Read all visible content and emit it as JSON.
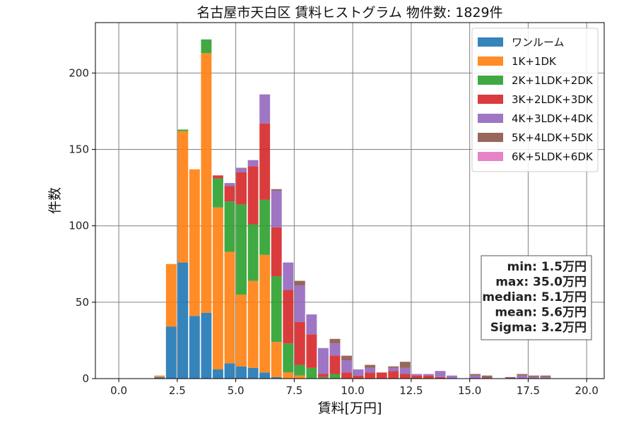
{
  "chart_data": {
    "type": "bar",
    "stacked": true,
    "title": "名古屋市天白区 賃料ヒストグラム  物件数: 1829件",
    "xlabel": "賃料[万円]",
    "ylabel": "件数",
    "xlim": [
      -1.0,
      20.75
    ],
    "ylim": [
      0,
      233
    ],
    "xticks": [
      "0.0",
      "2.5",
      "5.0",
      "7.5",
      "10.0",
      "12.5",
      "15.0",
      "17.5",
      "20.0"
    ],
    "yticks": [
      "0",
      "50",
      "100",
      "150",
      "200"
    ],
    "grid": true,
    "legend_position": "top-right",
    "bin_width": 0.5,
    "bins": [
      1.5,
      2.0,
      2.5,
      3.0,
      3.5,
      4.0,
      4.5,
      5.0,
      5.5,
      6.0,
      6.5,
      7.0,
      7.5,
      8.0,
      8.5,
      9.0,
      9.5,
      10.0,
      10.5,
      11.0,
      11.5,
      12.0,
      12.5,
      13.0,
      13.5,
      14.0,
      14.5,
      15.0,
      15.5,
      16.0,
      16.5,
      17.0,
      17.5,
      18.0
    ],
    "series": [
      {
        "name": "ワンルーム",
        "color": "#1f77b4",
        "values": [
          1,
          34,
          76,
          41,
          43,
          6,
          10,
          8,
          7,
          4,
          1,
          0,
          0,
          0,
          0,
          0,
          0,
          0,
          0,
          0,
          0,
          0,
          0,
          0,
          0,
          0,
          0,
          0,
          0,
          0,
          0,
          0,
          0,
          0
        ]
      },
      {
        "name": "1K+1DK",
        "color": "#ff7f0e",
        "values": [
          1,
          41,
          86,
          96,
          170,
          106,
          73,
          47,
          57,
          77,
          23,
          4,
          2,
          0,
          0,
          0,
          0,
          0,
          0,
          0,
          0,
          0,
          0,
          0,
          0,
          0,
          0,
          0,
          0,
          0,
          0,
          0,
          0,
          0
        ]
      },
      {
        "name": "2K+1LDK+2DK",
        "color": "#2ca02c",
        "values": [
          0,
          0,
          1,
          0,
          9,
          19,
          33,
          59,
          37,
          36,
          43,
          19,
          7,
          7,
          1,
          3,
          0,
          0,
          0,
          0,
          0,
          0,
          0,
          0,
          0,
          0,
          0,
          0,
          0,
          0,
          0,
          0,
          0,
          0
        ]
      },
      {
        "name": "3K+2LDK+3DK",
        "color": "#d62728",
        "values": [
          0,
          0,
          0,
          0,
          0,
          2,
          10,
          21,
          38,
          50,
          32,
          35,
          28,
          22,
          2,
          12,
          4,
          2,
          4,
          4,
          5,
          3,
          2,
          2,
          1,
          0,
          0,
          0,
          0,
          0,
          0,
          0,
          0,
          0
        ]
      },
      {
        "name": "4K+3LDK+4DK",
        "color": "#9467bd",
        "values": [
          0,
          0,
          0,
          0,
          0,
          0,
          2,
          3,
          4,
          19,
          24,
          18,
          24,
          13,
          17,
          8,
          8,
          4,
          3,
          0,
          2,
          4,
          1,
          1,
          4,
          2,
          0,
          2,
          0,
          0,
          0,
          2,
          1,
          1
        ]
      },
      {
        "name": "5K+4LDK+5DK",
        "color": "#8c564b",
        "values": [
          0,
          0,
          0,
          0,
          0,
          0,
          0,
          0,
          0,
          0,
          1,
          0,
          3,
          0,
          0,
          3,
          3,
          0,
          2,
          0,
          1,
          4,
          0,
          0,
          0,
          0,
          0,
          1,
          2,
          0,
          1,
          1,
          1,
          1
        ]
      },
      {
        "name": "6K+5LDK+6DK",
        "color": "#e377c2",
        "values": [
          0,
          0,
          0,
          0,
          0,
          0,
          0,
          0,
          0,
          0,
          0,
          0,
          0,
          0,
          0,
          0,
          0,
          0,
          0,
          0,
          0,
          0,
          0,
          0,
          0,
          0,
          0,
          0,
          0,
          0,
          0,
          0,
          0,
          0
        ]
      }
    ],
    "stats": [
      "min: 1.5万円",
      "max: 35.0万円",
      "median: 5.1万円",
      "mean: 5.6万円",
      "Sigma: 3.2万円"
    ]
  }
}
